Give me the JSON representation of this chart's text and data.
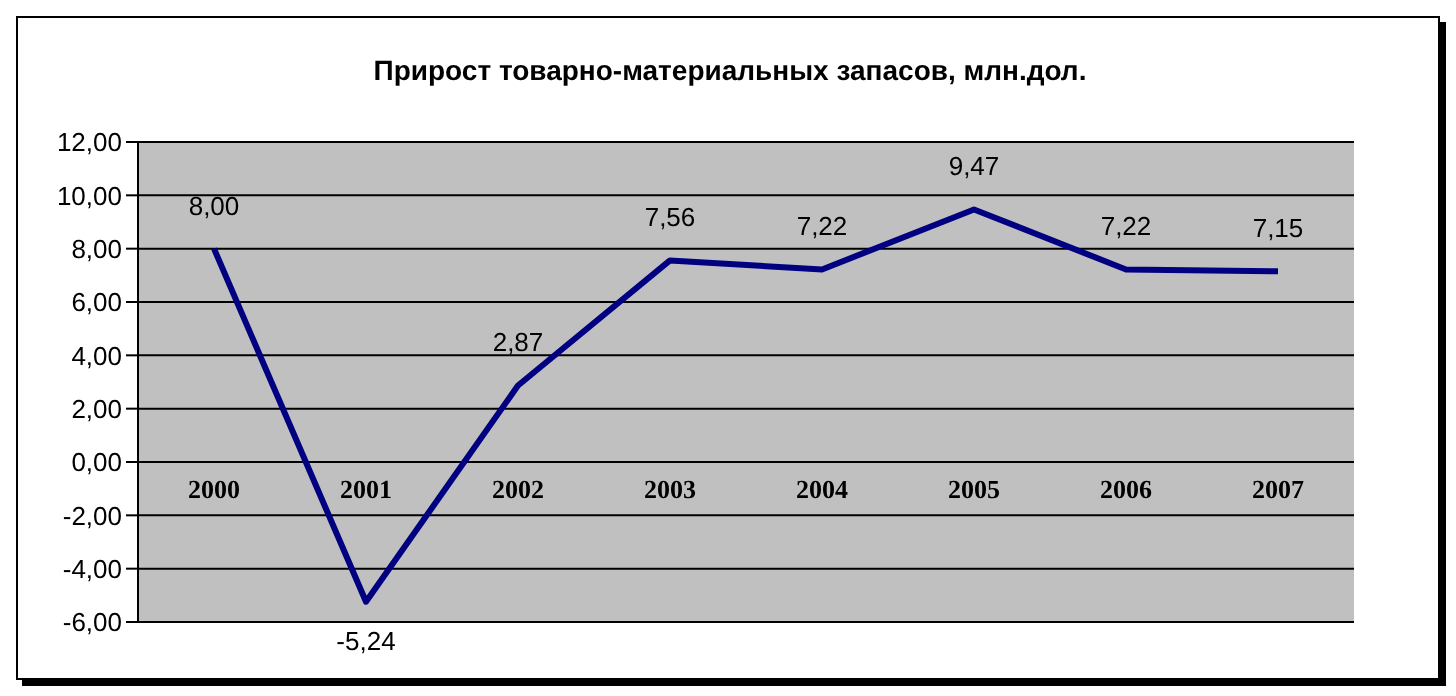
{
  "chart_data": {
    "type": "line",
    "title": "Прирост товарно-материальных запасов, млн.дол.",
    "categories": [
      "2000",
      "2001",
      "2002",
      "2003",
      "2004",
      "2005",
      "2006",
      "2007"
    ],
    "series": [
      {
        "color": "#000080",
        "values": [
          8.0,
          -5.24,
          2.87,
          7.56,
          7.22,
          9.47,
          7.22,
          7.15
        ],
        "value_labels": [
          "8,00",
          "-5,24",
          "2,87",
          "7,56",
          "7,22",
          "9,47",
          "7,22",
          "7,15"
        ]
      }
    ],
    "ylim": [
      -6,
      12
    ],
    "yticks": [
      {
        "value": -6,
        "label": "-6,00"
      },
      {
        "value": -4,
        "label": "-4,00"
      },
      {
        "value": -2,
        "label": "-2,00"
      },
      {
        "value": 0,
        "label": "0,00"
      },
      {
        "value": 2,
        "label": "2,00"
      },
      {
        "value": 4,
        "label": "4,00"
      },
      {
        "value": 6,
        "label": "6,00"
      },
      {
        "value": 8,
        "label": "8,00"
      },
      {
        "value": 10,
        "label": "10,00"
      },
      {
        "value": 12,
        "label": "12,00"
      }
    ],
    "grid": "y"
  }
}
